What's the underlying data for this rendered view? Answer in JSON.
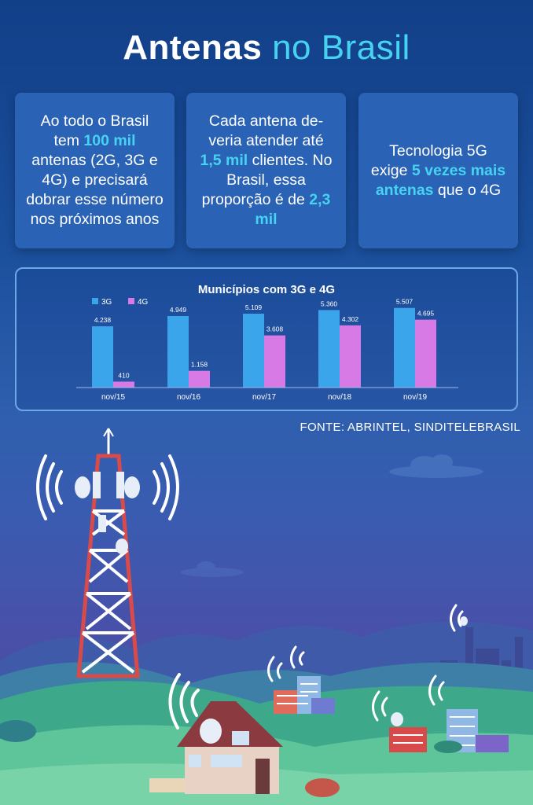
{
  "header": {
    "title_bold": "Antenas",
    "title_light": "no Brasil"
  },
  "cards": [
    {
      "pre": "Ao todo o Brasil tem ",
      "hl1": "100 mil",
      "mid": " antenas (2G, 3G e 4G) e precisará dobrar esse número nos próximos anos",
      "hl2": "",
      "post": ""
    },
    {
      "pre": "Cada antena de-veria atender até ",
      "hl1": "1,5 mil",
      "mid": " clientes. No Brasil, essa proporção é de ",
      "hl2": "2,3 mil",
      "post": ""
    },
    {
      "pre": "Tecnologia 5G exige ",
      "hl1": "5 vezes mais antenas",
      "mid": " que o 4G",
      "hl2": "",
      "post": ""
    }
  ],
  "chart_data": {
    "type": "bar",
    "title": "Municípios com 3G e 4G",
    "categories": [
      "nov/15",
      "nov/16",
      "nov/17",
      "nov/18",
      "nov/19"
    ],
    "series": [
      {
        "name": "3G",
        "values": [
          4238,
          4949,
          5109,
          5360,
          5507
        ],
        "labels": [
          "4.238",
          "4.949",
          "5.109",
          "5.360",
          "5.507"
        ],
        "color": "#3aa5ea"
      },
      {
        "name": "4G",
        "values": [
          410,
          1158,
          3608,
          4302,
          4695
        ],
        "labels": [
          "410",
          "1.158",
          "3.608",
          "4.302",
          "4.695"
        ],
        "color": "#d77ae6"
      }
    ],
    "ylim": [
      0,
      5600
    ],
    "legend": "top-left",
    "grid": false,
    "xlabel": "",
    "ylabel": ""
  },
  "source": "FONTE: ABRINTEL, SINDITELEBRASIL",
  "colors": {
    "accent": "#46d3f2",
    "bar3g": "#3aa5ea",
    "bar4g": "#d77ae6",
    "card": "#2a62b6"
  },
  "illustration": {
    "icons": [
      "cell-tower-icon",
      "wifi-signal-icon",
      "house-icon",
      "building-icon",
      "factory-icon"
    ]
  }
}
